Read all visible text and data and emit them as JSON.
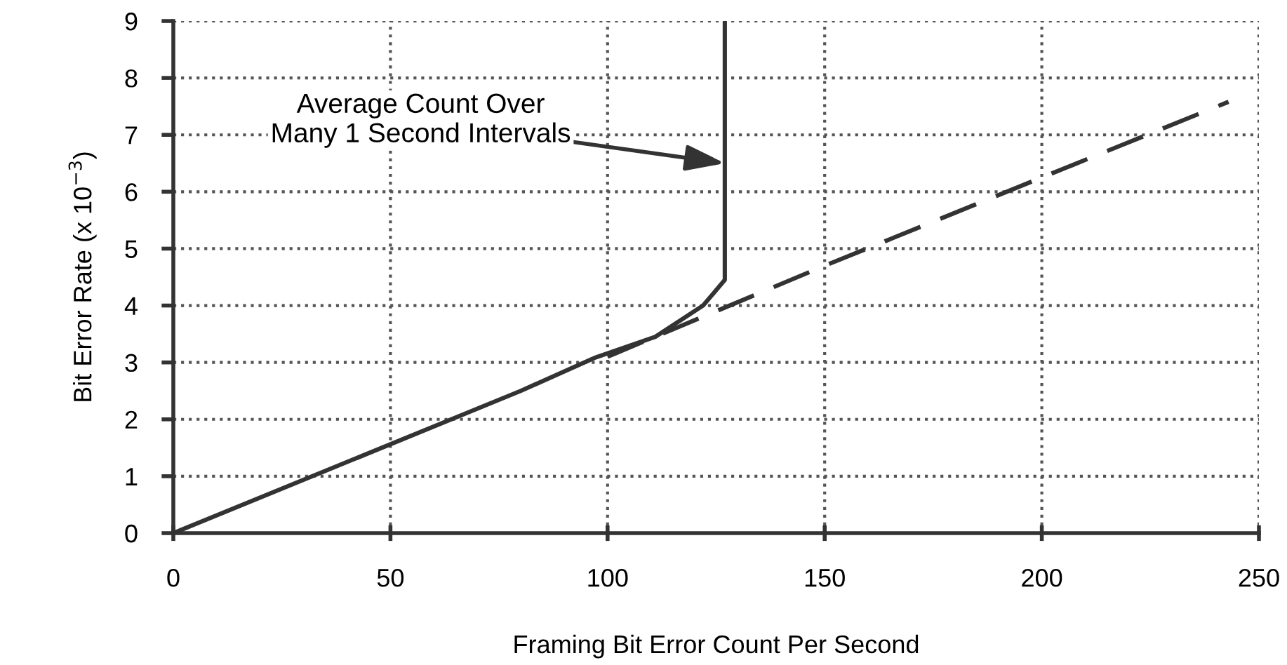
{
  "chart_data": {
    "type": "line",
    "xlabel": "Framing Bit Error Count Per Second",
    "ylabel": "Bit Error Rate (x 10$^{−3}$)",
    "series": [
      {
        "x": [
          0,
          80,
          97,
          111,
          122,
          127,
          127
        ],
        "values": [
          0,
          2.5,
          3.08,
          3.45,
          4.0,
          4.45,
          9
        ],
        "color": "#333333",
        "line_style": "solid"
      },
      {
        "x": [
          100,
          150,
          200,
          243
        ],
        "values": [
          3.1,
          4.7,
          6.25,
          7.58
        ],
        "color": "#333333",
        "line_style": "dashed"
      }
    ],
    "annotations": [
      {
        "text": "Average Count Over\nMany 1 Second Intervals",
        "x": 127,
        "y": 6.5
      }
    ],
    "xlim": [
      0,
      250
    ],
    "ylim": [
      0,
      9
    ],
    "xticks": [
      0,
      50,
      100,
      150,
      200,
      250
    ],
    "yticks": [
      0,
      1,
      2,
      3,
      4,
      5,
      6,
      7,
      8,
      9
    ],
    "grid": true,
    "marker": "none"
  }
}
